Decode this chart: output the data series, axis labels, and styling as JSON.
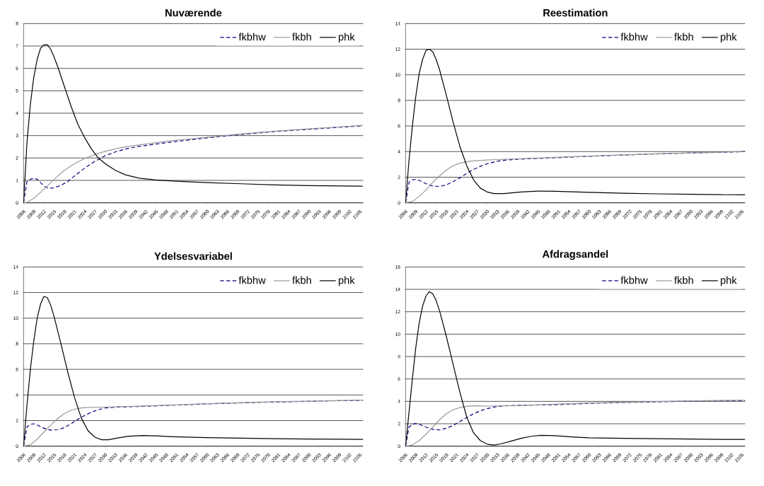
{
  "chart_data": [
    {
      "type": "line",
      "title": "Nuværende",
      "xlim": [
        2006,
        2106
      ],
      "ylim": [
        0,
        8
      ],
      "yticks": [
        0,
        1,
        2,
        3,
        4,
        5,
        6,
        7,
        8
      ],
      "xticks": [
        2006,
        2009,
        2012,
        2015,
        2018,
        2021,
        2024,
        2027,
        2030,
        2033,
        2036,
        2039,
        2042,
        2045,
        2048,
        2051,
        2054,
        2057,
        2060,
        2063,
        2066,
        2069,
        2072,
        2075,
        2078,
        2081,
        2084,
        2087,
        2090,
        2093,
        2096,
        2099,
        2102,
        2105
      ],
      "grid": "y",
      "legend": "top right",
      "marker": "none",
      "series": [
        {
          "name": "fkbhw",
          "color": "#000080",
          "line_style": "dashed",
          "x": [
            2006,
            2007,
            2008,
            2009,
            2010,
            2011,
            2012,
            2013,
            2014,
            2015,
            2017,
            2019,
            2021,
            2024,
            2027,
            2030,
            2033,
            2036,
            2040,
            2050,
            2060,
            2070,
            2080,
            2090,
            2100,
            2106
          ],
          "values": [
            0,
            0.95,
            1.05,
            1.1,
            1.05,
            0.9,
            0.75,
            0.67,
            0.65,
            0.67,
            0.78,
            0.95,
            1.2,
            1.55,
            1.85,
            2.1,
            2.27,
            2.4,
            2.52,
            2.72,
            2.9,
            3.05,
            3.18,
            3.28,
            3.38,
            3.44
          ]
        },
        {
          "name": "fkbh",
          "color": "#999999",
          "line_style": "solid",
          "x": [
            2006,
            2007,
            2009,
            2012,
            2015,
            2018,
            2021,
            2024,
            2027,
            2030,
            2035,
            2040,
            2050,
            2060,
            2070,
            2080,
            2090,
            2100,
            2106
          ],
          "values": [
            0,
            0.02,
            0.2,
            0.6,
            1.05,
            1.45,
            1.75,
            1.98,
            2.15,
            2.3,
            2.47,
            2.58,
            2.78,
            2.92,
            3.07,
            3.2,
            3.3,
            3.4,
            3.46
          ]
        },
        {
          "name": "phk",
          "color": "#000000",
          "line_style": "solid",
          "x": [
            2006,
            2007,
            2008,
            2009,
            2010,
            2011,
            2012,
            2013,
            2014,
            2015,
            2016,
            2018,
            2020,
            2022,
            2024,
            2026,
            2028,
            2030,
            2033,
            2036,
            2040,
            2045,
            2050,
            2060,
            2070,
            2080,
            2090,
            2100,
            2106
          ],
          "values": [
            0,
            2.7,
            4.4,
            5.6,
            6.4,
            6.9,
            7.05,
            7.05,
            6.85,
            6.5,
            6.1,
            5.2,
            4.3,
            3.5,
            2.9,
            2.4,
            2.0,
            1.75,
            1.45,
            1.25,
            1.1,
            1.02,
            0.97,
            0.9,
            0.85,
            0.8,
            0.77,
            0.75,
            0.74
          ]
        }
      ]
    },
    {
      "type": "line",
      "title": "Reestimation",
      "xlim": [
        2006,
        2106
      ],
      "ylim": [
        0,
        14
      ],
      "yticks": [
        0,
        2,
        4,
        6,
        8,
        10,
        12,
        14
      ],
      "xticks": [
        2006,
        2009,
        2012,
        2015,
        2018,
        2021,
        2024,
        2027,
        2030,
        2033,
        2036,
        2039,
        2042,
        2045,
        2048,
        2051,
        2054,
        2057,
        2060,
        2063,
        2066,
        2069,
        2072,
        2075,
        2078,
        2081,
        2084,
        2087,
        2090,
        2093,
        2096,
        2099,
        2102,
        2105
      ],
      "grid": "y",
      "legend": "top right",
      "marker": "none",
      "series": [
        {
          "name": "fkbhw",
          "color": "#000080",
          "line_style": "dashed",
          "x": [
            2006,
            2007,
            2008,
            2009,
            2010,
            2012,
            2014,
            2016,
            2018,
            2020,
            2022,
            2024,
            2026,
            2028,
            2030,
            2033,
            2036,
            2040,
            2050,
            2060,
            2070,
            2080,
            2090,
            2100,
            2106
          ],
          "values": [
            0,
            1.6,
            1.8,
            1.82,
            1.75,
            1.5,
            1.3,
            1.28,
            1.4,
            1.65,
            1.95,
            2.3,
            2.6,
            2.85,
            3.05,
            3.25,
            3.35,
            3.42,
            3.52,
            3.63,
            3.73,
            3.82,
            3.9,
            3.95,
            4.0
          ]
        },
        {
          "name": "fkbh",
          "color": "#999999",
          "line_style": "solid",
          "x": [
            2006,
            2008,
            2010,
            2012,
            2014,
            2016,
            2018,
            2020,
            2022,
            2025,
            2030,
            2040,
            2050,
            2060,
            2070,
            2080,
            2090,
            2100,
            2106
          ],
          "values": [
            0,
            0.1,
            0.5,
            1.0,
            1.6,
            2.1,
            2.55,
            2.9,
            3.1,
            3.25,
            3.35,
            3.45,
            3.55,
            3.65,
            3.75,
            3.83,
            3.9,
            3.96,
            4.02
          ]
        },
        {
          "name": "phk",
          "color": "#000000",
          "line_style": "solid",
          "x": [
            2006,
            2007,
            2008,
            2009,
            2010,
            2011,
            2012,
            2013,
            2014,
            2015,
            2016,
            2018,
            2020,
            2022,
            2024,
            2026,
            2028,
            2030,
            2032,
            2035,
            2040,
            2045,
            2050,
            2060,
            2070,
            2080,
            2090,
            2100,
            2106
          ],
          "values": [
            0,
            3.3,
            6,
            8.3,
            10.1,
            11.2,
            11.9,
            12.0,
            11.8,
            11.2,
            10.4,
            8.4,
            6.3,
            4.4,
            2.9,
            1.8,
            1.15,
            0.85,
            0.72,
            0.72,
            0.85,
            0.92,
            0.9,
            0.82,
            0.75,
            0.7,
            0.67,
            0.63,
            0.62
          ]
        }
      ]
    },
    {
      "type": "line",
      "title": "Ydelsesvariabel",
      "xlim": [
        2006,
        2106
      ],
      "ylim": [
        0,
        14
      ],
      "yticks": [
        0,
        2,
        4,
        6,
        8,
        10,
        12,
        14
      ],
      "xticks": [
        2006,
        2009,
        2012,
        2015,
        2018,
        2021,
        2024,
        2027,
        2030,
        2033,
        2036,
        2039,
        2042,
        2045,
        2048,
        2051,
        2054,
        2057,
        2060,
        2063,
        2066,
        2069,
        2072,
        2075,
        2078,
        2081,
        2084,
        2087,
        2090,
        2093,
        2096,
        2099,
        2102,
        2105
      ],
      "grid": "y",
      "legend": "top right",
      "marker": "none",
      "series": [
        {
          "name": "fkbhw",
          "color": "#000080",
          "line_style": "dashed",
          "x": [
            2006,
            2007,
            2008,
            2009,
            2010,
            2012,
            2014,
            2016,
            2018,
            2020,
            2022,
            2024,
            2026,
            2028,
            2030,
            2033,
            2040,
            2050,
            2060,
            2070,
            2080,
            2090,
            2100,
            2106
          ],
          "values": [
            0,
            1.5,
            1.7,
            1.75,
            1.65,
            1.4,
            1.25,
            1.28,
            1.45,
            1.75,
            2.1,
            2.4,
            2.65,
            2.85,
            2.98,
            3.05,
            3.1,
            3.2,
            3.3,
            3.38,
            3.45,
            3.5,
            3.56,
            3.58
          ]
        },
        {
          "name": "fkbh",
          "color": "#999999",
          "line_style": "solid",
          "x": [
            2006,
            2008,
            2010,
            2012,
            2014,
            2016,
            2018,
            2020,
            2022,
            2024,
            2030,
            2040,
            2050,
            2060,
            2070,
            2080,
            2090,
            2100,
            2106
          ],
          "values": [
            0,
            0.1,
            0.55,
            1.1,
            1.65,
            2.15,
            2.55,
            2.8,
            2.95,
            3.02,
            3.05,
            3.12,
            3.22,
            3.32,
            3.4,
            3.47,
            3.52,
            3.57,
            3.6
          ]
        },
        {
          "name": "phk",
          "color": "#000000",
          "line_style": "solid",
          "x": [
            2006,
            2007,
            2008,
            2009,
            2010,
            2011,
            2012,
            2013,
            2014,
            2015,
            2017,
            2019,
            2021,
            2023,
            2025,
            2027,
            2029,
            2031,
            2034,
            2037,
            2041,
            2045,
            2050,
            2060,
            2070,
            2080,
            2090,
            2100,
            2106
          ],
          "values": [
            0,
            3.2,
            6,
            8.2,
            10,
            11.1,
            11.7,
            11.6,
            11.0,
            10.1,
            8.0,
            5.8,
            3.8,
            2.2,
            1.2,
            0.7,
            0.5,
            0.5,
            0.65,
            0.78,
            0.83,
            0.8,
            0.74,
            0.67,
            0.62,
            0.58,
            0.56,
            0.54,
            0.53
          ]
        }
      ]
    },
    {
      "type": "line",
      "title": "Afdragsandel",
      "xlim": [
        2006,
        2106
      ],
      "ylim": [
        0,
        16
      ],
      "yticks": [
        0,
        2,
        4,
        6,
        8,
        10,
        12,
        14,
        16
      ],
      "xticks": [
        2006,
        2009,
        2012,
        2015,
        2018,
        2021,
        2024,
        2027,
        2030,
        2033,
        2036,
        2039,
        2042,
        2045,
        2048,
        2051,
        2054,
        2057,
        2060,
        2063,
        2066,
        2069,
        2072,
        2075,
        2078,
        2081,
        2084,
        2087,
        2090,
        2093,
        2096,
        2099,
        2102,
        2105
      ],
      "grid": "y",
      "legend": "top right",
      "marker": "none",
      "series": [
        {
          "name": "fkbhw",
          "color": "#000080",
          "line_style": "dashed",
          "x": [
            2006,
            2007,
            2008,
            2009,
            2010,
            2012,
            2014,
            2016,
            2018,
            2020,
            2022,
            2024,
            2026,
            2028,
            2030,
            2033,
            2036,
            2040,
            2050,
            2060,
            2070,
            2080,
            2090,
            2100,
            2106
          ],
          "values": [
            0,
            1.7,
            1.95,
            2.02,
            1.95,
            1.7,
            1.5,
            1.45,
            1.6,
            1.85,
            2.2,
            2.55,
            2.9,
            3.15,
            3.35,
            3.55,
            3.62,
            3.65,
            3.7,
            3.82,
            3.9,
            3.95,
            4.02,
            4.06,
            4.08
          ]
        },
        {
          "name": "fkbh",
          "color": "#999999",
          "line_style": "solid",
          "x": [
            2006,
            2008,
            2010,
            2012,
            2014,
            2016,
            2018,
            2020,
            2022,
            2024,
            2026,
            2030,
            2040,
            2050,
            2060,
            2070,
            2080,
            2090,
            2100,
            2106
          ],
          "values": [
            0,
            0.1,
            0.5,
            1.05,
            1.7,
            2.35,
            2.9,
            3.25,
            3.45,
            3.56,
            3.6,
            3.58,
            3.62,
            3.75,
            3.85,
            3.92,
            3.98,
            4.04,
            4.08,
            4.1
          ]
        },
        {
          "name": "phk",
          "color": "#000000",
          "line_style": "solid",
          "x": [
            2006,
            2007,
            2008,
            2009,
            2010,
            2011,
            2012,
            2013,
            2014,
            2015,
            2016,
            2018,
            2020,
            2022,
            2024,
            2026,
            2028,
            2030,
            2032,
            2034,
            2037,
            2040,
            2043,
            2046,
            2050,
            2055,
            2060,
            2070,
            2080,
            2090,
            2100,
            2106
          ],
          "values": [
            0,
            3,
            6,
            8.8,
            11,
            12.5,
            13.4,
            13.8,
            13.6,
            13.0,
            12.1,
            9.8,
            7.3,
            4.8,
            2.6,
            1.2,
            0.5,
            0.18,
            0.1,
            0.2,
            0.45,
            0.7,
            0.88,
            0.97,
            0.93,
            0.82,
            0.74,
            0.7,
            0.67,
            0.63,
            0.6,
            0.6
          ]
        }
      ]
    }
  ]
}
